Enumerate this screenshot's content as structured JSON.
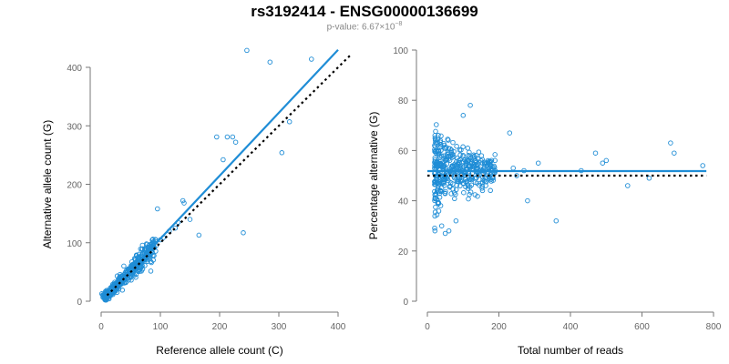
{
  "header": {
    "title": "rs3192414 - ENSG00000136699",
    "pvalue_label": "p-value: 6.67×10",
    "pvalue_exponent": "−8"
  },
  "colors": {
    "points": "#1f8dd6",
    "fit_line": "#1f8dd6",
    "reference_line": "#000000",
    "axis": "#777777",
    "tick_text": "#666666"
  },
  "chart_data": [
    {
      "type": "scatter",
      "xlabel": "Reference allele count (C)",
      "ylabel": "Alternative allele count (G)",
      "xlim": [
        0,
        400
      ],
      "ylim": [
        0,
        400
      ],
      "x_ticks": [
        0,
        100,
        200,
        300,
        400
      ],
      "y_ticks": [
        0,
        100,
        200,
        300,
        400
      ],
      "grid": false,
      "fit_line": {
        "style": "solid",
        "from": [
          10,
          10
        ],
        "to": [
          400,
          430
        ]
      },
      "reference_line": {
        "style": "dotted",
        "from": [
          10,
          10
        ],
        "to": [
          420,
          420
        ]
      },
      "outliers": [
        [
          246,
          429
        ],
        [
          285,
          409
        ],
        [
          355,
          414
        ],
        [
          195,
          281
        ],
        [
          213,
          281
        ],
        [
          222,
          281
        ],
        [
          227,
          272
        ],
        [
          318,
          307
        ],
        [
          305,
          254
        ],
        [
          206,
          242
        ],
        [
          240,
          117
        ],
        [
          165,
          113
        ],
        [
          138,
          172
        ],
        [
          140,
          168
        ],
        [
          150,
          140
        ],
        [
          130,
          135
        ],
        [
          95,
          158
        ],
        [
          100,
          105
        ],
        [
          105,
          109
        ],
        [
          115,
          120
        ],
        [
          125,
          125
        ]
      ],
      "bulk_description": "dense cluster of ~400 points along the diagonal from 0 to ~110",
      "n_points_approx": 450
    },
    {
      "type": "scatter",
      "xlabel": "Total number of reads",
      "ylabel": "Percentage alternative (G)",
      "xlim": [
        0,
        800
      ],
      "ylim": [
        0,
        100
      ],
      "x_ticks": [
        0,
        200,
        400,
        600,
        800
      ],
      "y_ticks": [
        0,
        20,
        40,
        60,
        80,
        100
      ],
      "grid": false,
      "fit_line": {
        "style": "solid",
        "y": 51.8,
        "x_from": 0,
        "x_to": 780
      },
      "reference_line": {
        "style": "dotted",
        "y": 50,
        "x_from": 0,
        "x_to": 780
      },
      "outliers": [
        [
          680,
          63
        ],
        [
          690,
          59
        ],
        [
          770,
          54
        ],
        [
          470,
          59
        ],
        [
          490,
          55
        ],
        [
          500,
          56
        ],
        [
          560,
          46
        ],
        [
          620,
          49
        ],
        [
          430,
          52
        ],
        [
          360,
          32
        ],
        [
          310,
          55
        ],
        [
          280,
          40
        ],
        [
          270,
          52
        ],
        [
          240,
          53
        ],
        [
          250,
          50
        ],
        [
          230,
          67
        ],
        [
          120,
          78
        ],
        [
          100,
          74
        ],
        [
          40,
          30
        ],
        [
          50,
          27
        ],
        [
          60,
          28
        ],
        [
          80,
          32
        ]
      ],
      "bulk_description": "dense cloud of points between 20 and 200 reads, 30%–75%",
      "n_points_approx": 450
    }
  ]
}
